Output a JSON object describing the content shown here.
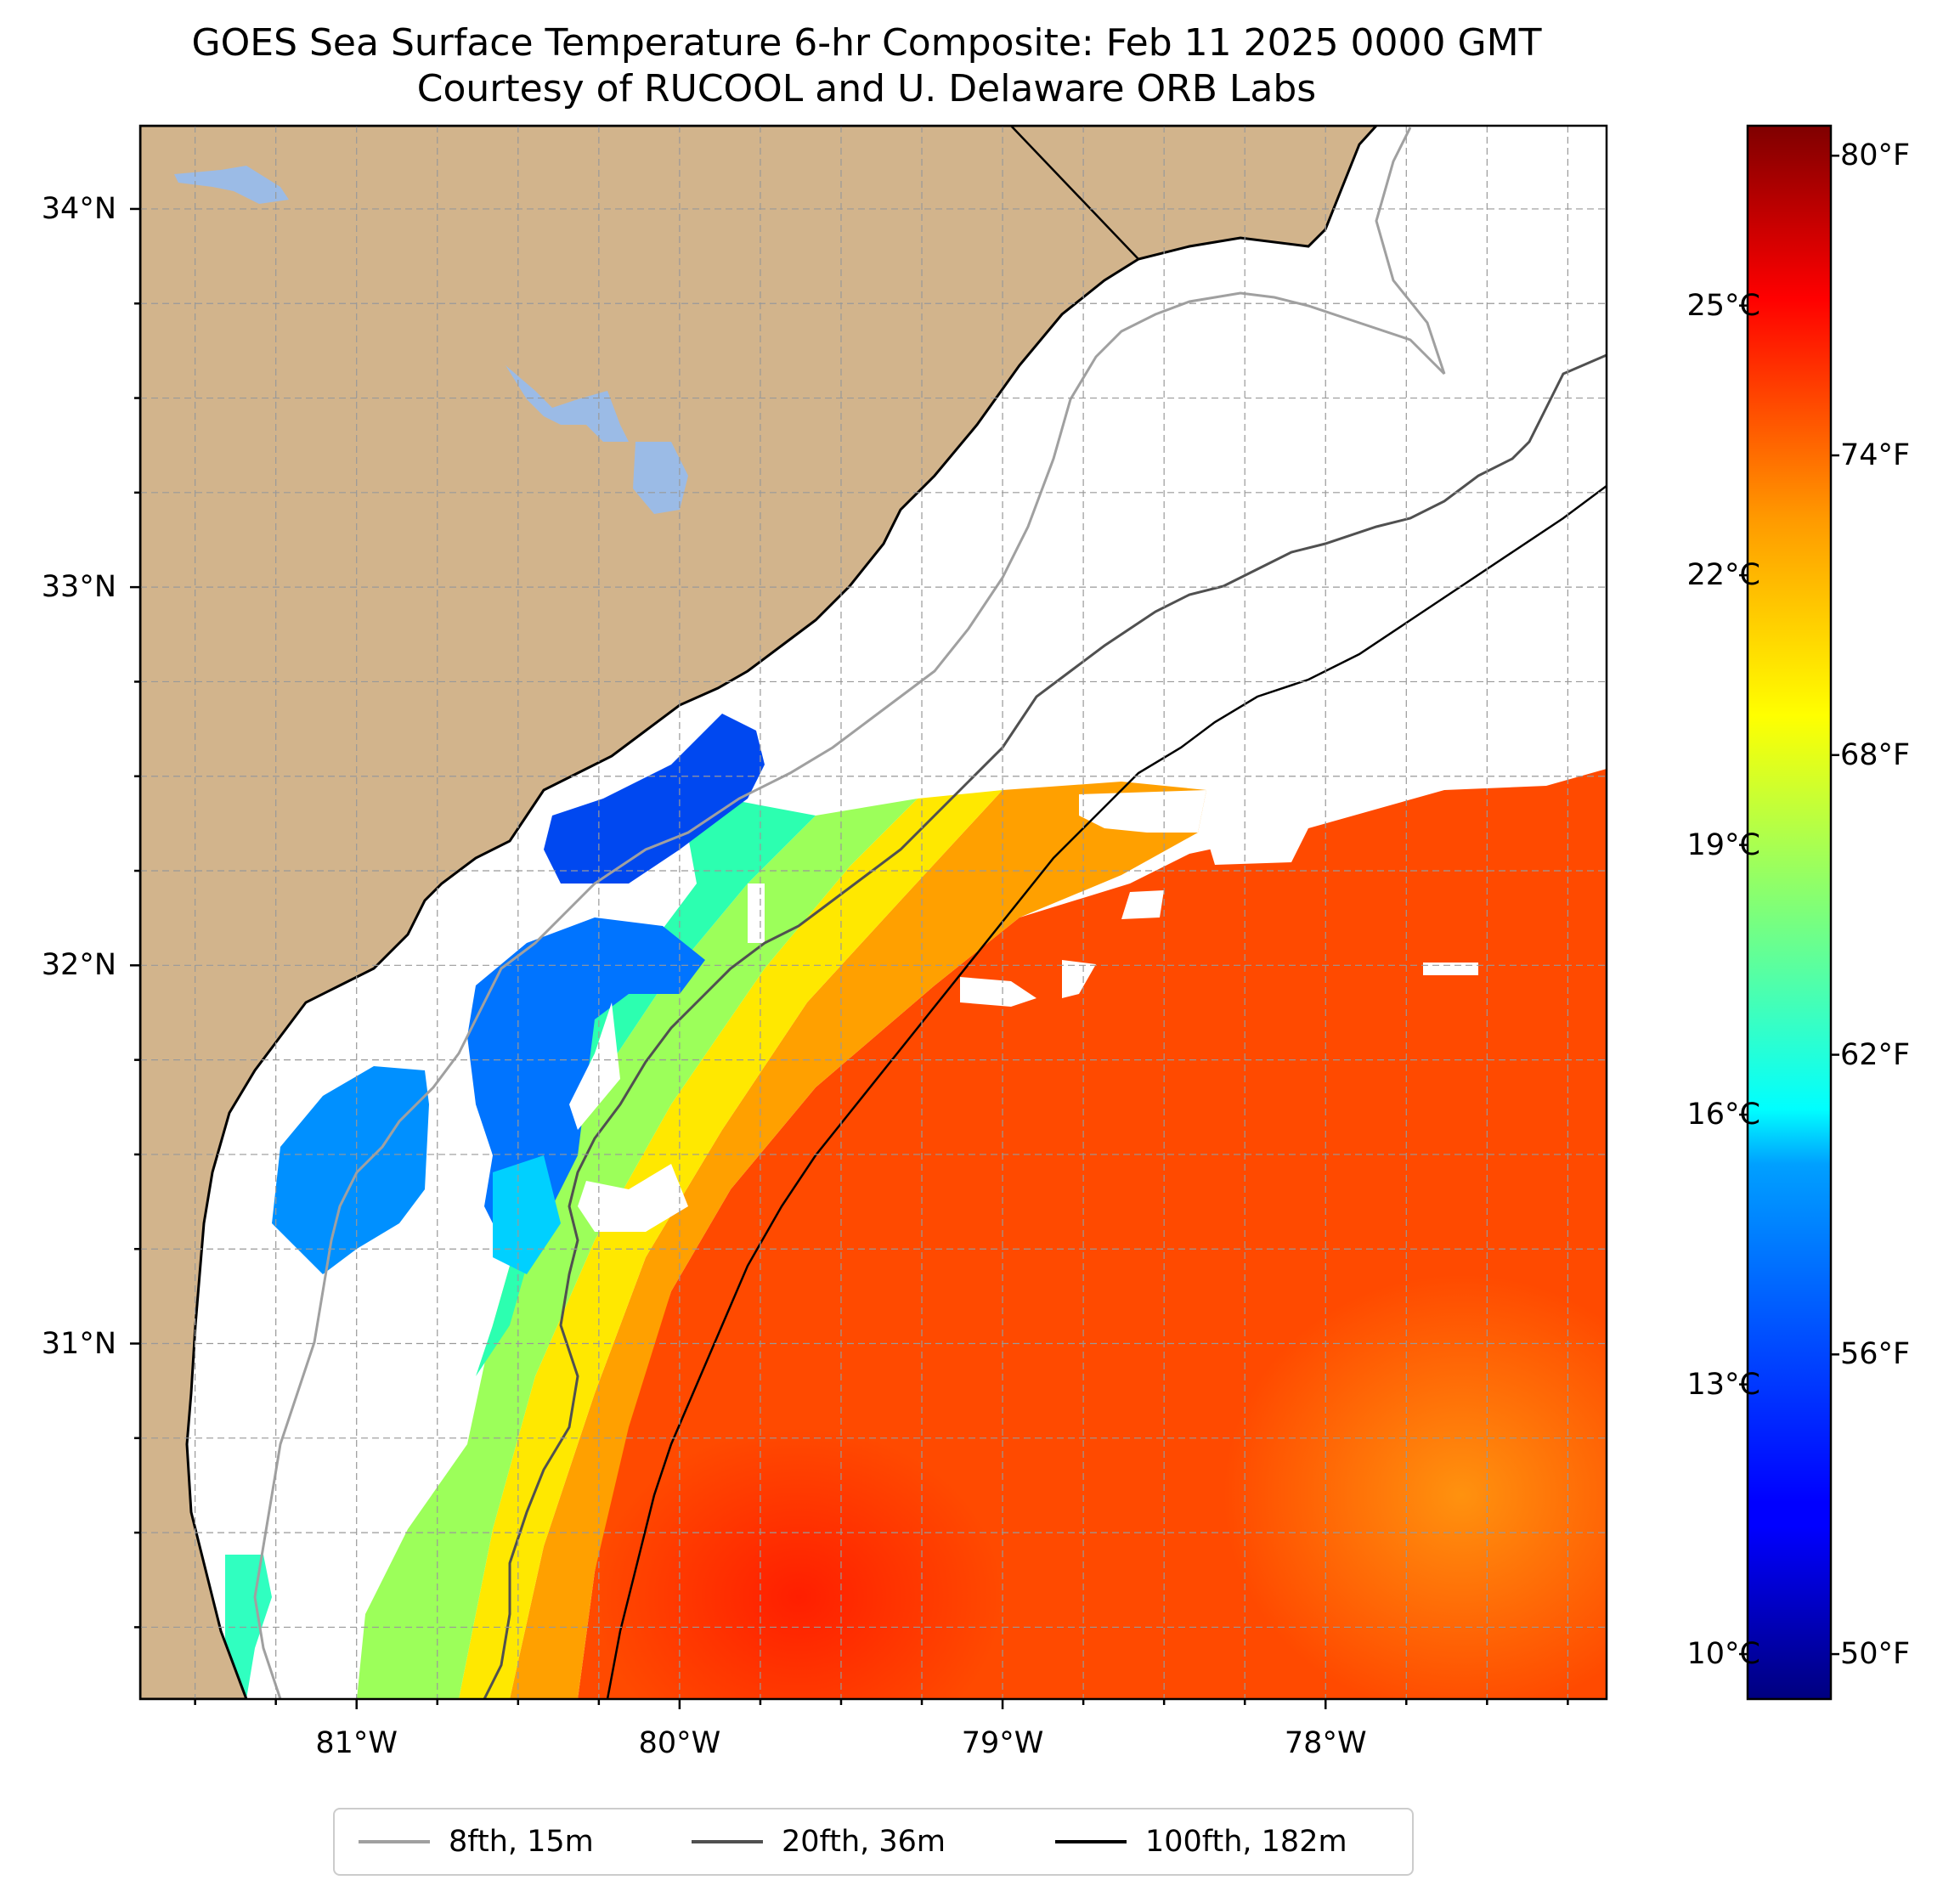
{
  "title": {
    "line1": "GOES Sea Surface Temperature 6-hr Composite: Feb 11 2025 0000 GMT",
    "line2": "Courtesy of RUCOOL and U. Delaware ORB Labs"
  },
  "map": {
    "extent": {
      "lon_min": -81.67,
      "lon_max": -77.13,
      "lat_min": 30.06,
      "lat_max": 34.22
    },
    "lat_ticks": [
      {
        "value": 34,
        "label": "34°N"
      },
      {
        "value": 33,
        "label": "33°N"
      },
      {
        "value": 32,
        "label": "32°N"
      },
      {
        "value": 31,
        "label": "31°N"
      }
    ],
    "lon_ticks": [
      {
        "value": -81,
        "label": "81°W"
      },
      {
        "value": -80,
        "label": "80°W"
      },
      {
        "value": -79,
        "label": "79°W"
      },
      {
        "value": -78,
        "label": "78°W"
      }
    ],
    "grid": "dashed gray every 0.25°",
    "colors": {
      "land": "#d2b48c",
      "water_body": "#9bbbe6",
      "no_data": "#ffffff",
      "coastline": "#000000"
    }
  },
  "colorbar": {
    "colormap": "jet",
    "range_c": [
      9.5,
      27
    ],
    "celsius_labels": [
      {
        "value": 25,
        "label": "25°C"
      },
      {
        "value": 22,
        "label": "22°C"
      },
      {
        "value": 19,
        "label": "19°C"
      },
      {
        "value": 16,
        "label": "16°C"
      },
      {
        "value": 13,
        "label": "13°C"
      },
      {
        "value": 10,
        "label": "10°C"
      }
    ],
    "fahrenheit_labels": [
      {
        "value": 80,
        "label": "80°F"
      },
      {
        "value": 74,
        "label": "74°F"
      },
      {
        "value": 68,
        "label": "68°F"
      },
      {
        "value": 62,
        "label": "62°F"
      },
      {
        "value": 56,
        "label": "56°F"
      },
      {
        "value": 50,
        "label": "50°F"
      }
    ]
  },
  "legend": [
    {
      "label": "8fth, 15m",
      "color": "#a0a0a0"
    },
    {
      "label": "20fth, 36m",
      "color": "#505050"
    },
    {
      "label": "100fth, 182m",
      "color": "#000000"
    }
  ]
}
